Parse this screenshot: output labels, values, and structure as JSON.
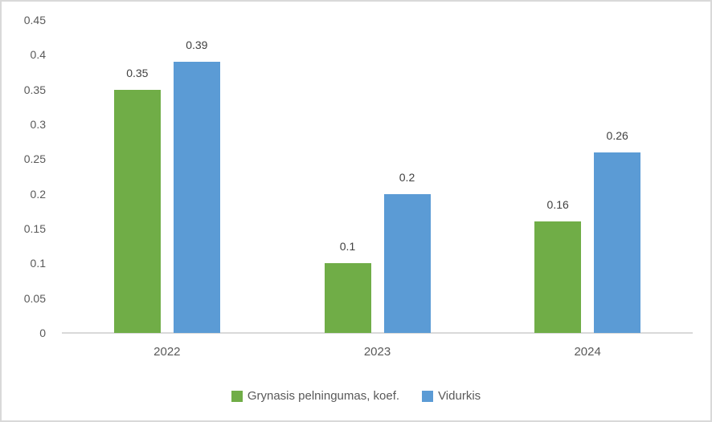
{
  "chart_data": {
    "type": "bar",
    "title": "",
    "xlabel": "",
    "ylabel": "",
    "categories": [
      "2022",
      "2023",
      "2024"
    ],
    "series": [
      {
        "name": "Grynasis pelningumas, koef.",
        "color": "#70AD47",
        "values": [
          0.35,
          0.1,
          0.16
        ],
        "data_labels": [
          "0.35",
          "0.1",
          "0.16"
        ]
      },
      {
        "name": "Vidurkis",
        "color": "#5B9BD5",
        "values": [
          0.39,
          0.2,
          0.26
        ],
        "data_labels": [
          "0.39",
          "0.2",
          "0.26"
        ]
      }
    ],
    "ylim": [
      0,
      0.45
    ],
    "ytick_step": 0.05,
    "ytick_labels": [
      "0",
      "0.05",
      "0.1",
      "0.15",
      "0.2",
      "0.25",
      "0.3",
      "0.35",
      "0.4",
      "0.45"
    ],
    "grid": false,
    "legend_position": "bottom-center"
  },
  "styles": {
    "background": "#FFFFFF",
    "border_color": "#D9D9D9",
    "axis_line_color": "#D9D9D9",
    "tick_text_color": "#595959",
    "data_label_color": "#404040",
    "legend_text_color": "#595959"
  }
}
